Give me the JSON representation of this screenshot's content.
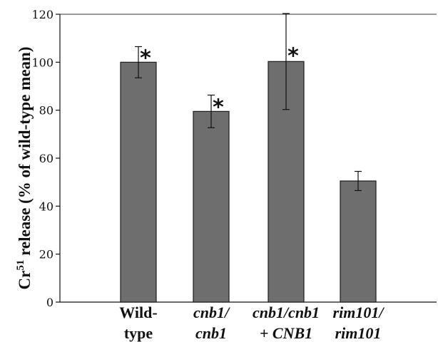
{
  "chart_data": {
    "type": "bar",
    "ylabel_main": "Cr",
    "ylabel_sup": "51",
    "ylabel_rest": " release (% of wild-type mean)",
    "ylim": [
      0,
      120
    ],
    "yticks": [
      "0",
      "20",
      "40",
      "60",
      "80",
      "100",
      "120"
    ],
    "categories": [
      {
        "line1": "Wild-",
        "line2": "type",
        "italic1": false,
        "italic2": false
      },
      {
        "line1": "cnb1/",
        "line2": "cnb1",
        "italic1": true,
        "italic2": true
      },
      {
        "line1": "cnb1/cnb1",
        "line2": "+ CNB1",
        "italic1": true,
        "italic2": true
      },
      {
        "line1": "rim101/",
        "line2": "rim101",
        "italic1": true,
        "italic2": true
      }
    ],
    "values": [
      100,
      79.5,
      100.3,
      50.5
    ],
    "error": [
      6.5,
      6.8,
      20,
      4
    ],
    "significant": [
      true,
      true,
      true,
      false
    ],
    "star_symbol": "*",
    "bar_color": "#6e6e6e",
    "grid": false
  }
}
